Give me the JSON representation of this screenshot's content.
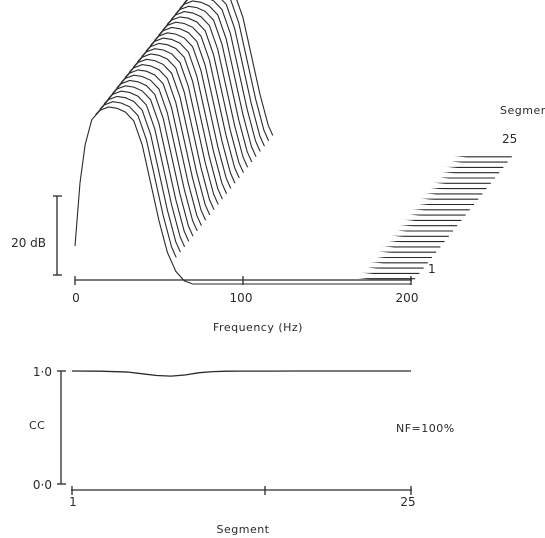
{
  "chart_data": [
    {
      "type": "line",
      "chart_kind": "waterfall",
      "xlabel": "Frequency (Hz)",
      "x_ticks": [
        "0",
        "100",
        "200"
      ],
      "xlim": [
        0,
        200
      ],
      "scale_bar_label": "20 dB",
      "scale_bar_db": 20,
      "depth_axis_label": "Segment",
      "depth_labels": [
        "1",
        "25"
      ],
      "segments": 25,
      "series": [
        {
          "x": [
            0,
            3,
            6,
            10,
            15,
            20,
            25,
            30,
            35,
            40,
            45,
            50,
            55,
            60,
            65,
            70,
            80,
            100,
            120,
            150,
            180,
            200
          ],
          "y_db_first_segment": [
            -22,
            -12,
            -6,
            -2,
            -0.5,
            0,
            -0.2,
            -0.8,
            -2.2,
            -6,
            -12,
            -18,
            -23,
            -26,
            -27.5,
            -28,
            -28,
            -28,
            -28,
            -28,
            -28,
            -28
          ],
          "y_db_last_segment": [
            -22,
            -12,
            -6,
            -2,
            -0.5,
            0,
            -0.2,
            -0.8,
            -2.2,
            -6,
            -12,
            -18,
            -23,
            -26,
            -27.5,
            -28,
            -28,
            -28,
            -28,
            -28,
            -28,
            -28
          ]
        }
      ]
    },
    {
      "type": "line",
      "xlabel": "Segment",
      "ylabel": "CC",
      "x_ticks": [
        "1",
        "25"
      ],
      "y_ticks": [
        "0·0",
        "1·0"
      ],
      "xlim": [
        1,
        25
      ],
      "ylim": [
        0,
        1
      ],
      "annotation": "NF=100%",
      "series": [
        {
          "x": [
            1,
            3,
            5,
            6,
            7,
            8,
            9,
            10,
            11,
            12,
            13,
            15,
            17,
            19,
            21,
            23,
            25
          ],
          "y": [
            1.0,
            0.998,
            0.99,
            0.975,
            0.96,
            0.955,
            0.965,
            0.985,
            0.995,
            0.998,
            0.999,
            0.999,
            1.0,
            1.0,
            1.0,
            1.0,
            1.0
          ]
        }
      ]
    }
  ]
}
